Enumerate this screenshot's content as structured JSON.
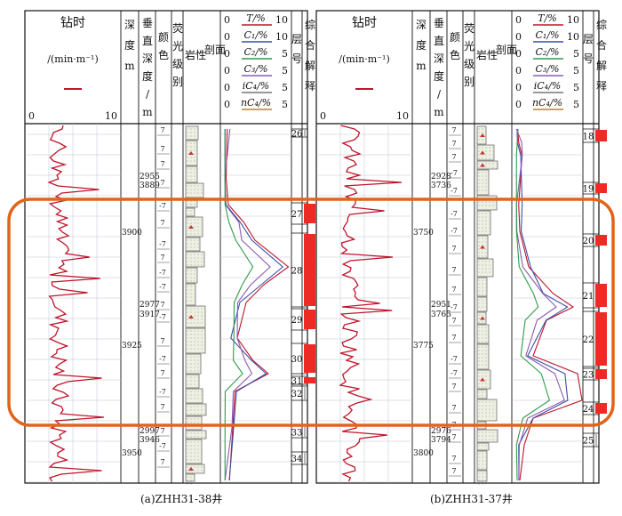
{
  "panels": [
    {
      "caption": "(a)ZHH31-38井",
      "header": {
        "drill_time": "钻时",
        "drill_unit": "/(min·m⁻¹)",
        "scale_min": "0",
        "scale_max": "10",
        "depth": "深度/m",
        "vertical_depth": "垂直深度/m",
        "color": "颜色",
        "fluorescence": "荧光级别",
        "lithology": "岩性剖面",
        "gas_rows": [
          {
            "label": "T/%",
            "min": "0",
            "max": "10"
          },
          {
            "label": "C₁/%",
            "min": "0",
            "max": "10"
          },
          {
            "label": "C₂/%",
            "min": "0",
            "max": "5"
          },
          {
            "label": "C₃/%",
            "min": "0",
            "max": "5"
          },
          {
            "label": "iC₄/%",
            "min": "0",
            "max": "5"
          },
          {
            "label": "nC₄/%",
            "min": "0",
            "max": "5"
          }
        ],
        "layer": "层号",
        "interpretation": "综合解释"
      },
      "depth_labels": [
        "3900",
        "3925",
        "3950"
      ],
      "vertical_depth_labels": [
        "2955",
        "3889",
        "2977",
        "3917",
        "2997",
        "3946"
      ],
      "layers": [
        "26",
        "27",
        "28",
        "29",
        "30",
        "31",
        "32",
        "33",
        "34"
      ]
    },
    {
      "caption": "(b)ZHH31-37井",
      "header": {
        "drill_time": "钻时",
        "drill_unit": "/(min·m⁻¹)",
        "scale_min": "0",
        "scale_max": "10",
        "depth": "深度/m",
        "vertical_depth": "垂直深度/m",
        "color": "颜色",
        "fluorescence": "荧光级别",
        "lithology": "岩性剖面",
        "gas_rows": [
          {
            "label": "T/%",
            "min": "0",
            "max": "10"
          },
          {
            "label": "C₁/%",
            "min": "0",
            "max": "10"
          },
          {
            "label": "C₂/%",
            "min": "0",
            "max": "5"
          },
          {
            "label": "C₃/%",
            "min": "0",
            "max": "5"
          },
          {
            "label": "iC₄/%",
            "min": "0",
            "max": "5"
          },
          {
            "label": "nC₄/%",
            "min": "0",
            "max": "5"
          }
        ],
        "layer": "层号",
        "interpretation": "综合解释"
      },
      "depth_labels": [
        "3750",
        "3775",
        "3800"
      ],
      "vertical_depth_labels": [
        "2928",
        "3736",
        "2951",
        "3765",
        "2976",
        "3794"
      ],
      "layers": [
        "18",
        "19",
        "20",
        "21",
        "22",
        "23",
        "24",
        "25"
      ]
    }
  ],
  "colors": {
    "drill_curve": "#c0142a",
    "total_gas": "#c0142a",
    "c1": "#3a4fa8",
    "c2": "#2f9a4a",
    "c3": "#8c5bb0",
    "interpretation_fill": "#ee2a24",
    "highlight_frame": "#e0651a",
    "grid": "#b9c3cf"
  }
}
